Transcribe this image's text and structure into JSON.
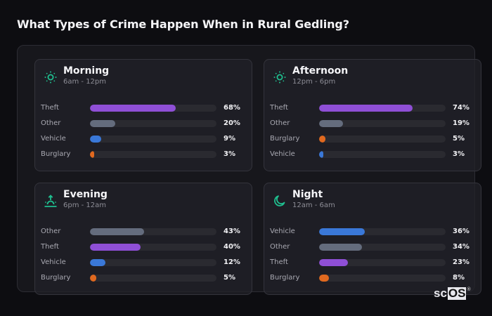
{
  "title": "What Types of Crime Happen When in Rural Gedling?",
  "colors": {
    "Theft": "#8f4fd6",
    "Other": "#646c7d",
    "Vehicle": "#3a78d8",
    "Burglary": "#e0691f",
    "icon": "#1fbf8f"
  },
  "cards": [
    {
      "title": "Morning",
      "subtitle": "6am - 12pm",
      "icon": "sun-icon",
      "rows": [
        {
          "label": "Theft",
          "value": 68,
          "pct": "68%"
        },
        {
          "label": "Other",
          "value": 20,
          "pct": "20%"
        },
        {
          "label": "Vehicle",
          "value": 9,
          "pct": "9%"
        },
        {
          "label": "Burglary",
          "value": 3,
          "pct": "3%"
        }
      ]
    },
    {
      "title": "Afternoon",
      "subtitle": "12pm - 6pm",
      "icon": "sun-icon",
      "rows": [
        {
          "label": "Theft",
          "value": 74,
          "pct": "74%"
        },
        {
          "label": "Other",
          "value": 19,
          "pct": "19%"
        },
        {
          "label": "Burglary",
          "value": 5,
          "pct": "5%"
        },
        {
          "label": "Vehicle",
          "value": 3,
          "pct": "3%"
        }
      ]
    },
    {
      "title": "Evening",
      "subtitle": "6pm - 12am",
      "icon": "sunset-icon",
      "rows": [
        {
          "label": "Other",
          "value": 43,
          "pct": "43%"
        },
        {
          "label": "Theft",
          "value": 40,
          "pct": "40%"
        },
        {
          "label": "Vehicle",
          "value": 12,
          "pct": "12%"
        },
        {
          "label": "Burglary",
          "value": 5,
          "pct": "5%"
        }
      ]
    },
    {
      "title": "Night",
      "subtitle": "12am - 6am",
      "icon": "moon-icon",
      "rows": [
        {
          "label": "Vehicle",
          "value": 36,
          "pct": "36%"
        },
        {
          "label": "Other",
          "value": 34,
          "pct": "34%"
        },
        {
          "label": "Theft",
          "value": 23,
          "pct": "23%"
        },
        {
          "label": "Burglary",
          "value": 8,
          "pct": "8%"
        }
      ]
    }
  ],
  "logo": {
    "part1": "sc",
    "part2": "OS",
    "reg": "®"
  },
  "chart_data": {
    "type": "bar",
    "title": "What Types of Crime Happen When in Rural Gedling?",
    "orientation": "horizontal",
    "xlim": [
      0,
      100
    ],
    "unit": "%",
    "panels": [
      {
        "name": "Morning",
        "subtitle": "6am - 12pm",
        "categories": [
          "Theft",
          "Other",
          "Vehicle",
          "Burglary"
        ],
        "values": [
          68,
          20,
          9,
          3
        ]
      },
      {
        "name": "Afternoon",
        "subtitle": "12pm - 6pm",
        "categories": [
          "Theft",
          "Other",
          "Burglary",
          "Vehicle"
        ],
        "values": [
          74,
          19,
          5,
          3
        ]
      },
      {
        "name": "Evening",
        "subtitle": "6pm - 12am",
        "categories": [
          "Other",
          "Theft",
          "Vehicle",
          "Burglary"
        ],
        "values": [
          43,
          40,
          12,
          5
        ]
      },
      {
        "name": "Night",
        "subtitle": "12am - 6am",
        "categories": [
          "Vehicle",
          "Other",
          "Theft",
          "Burglary"
        ],
        "values": [
          36,
          34,
          23,
          8
        ]
      }
    ]
  }
}
